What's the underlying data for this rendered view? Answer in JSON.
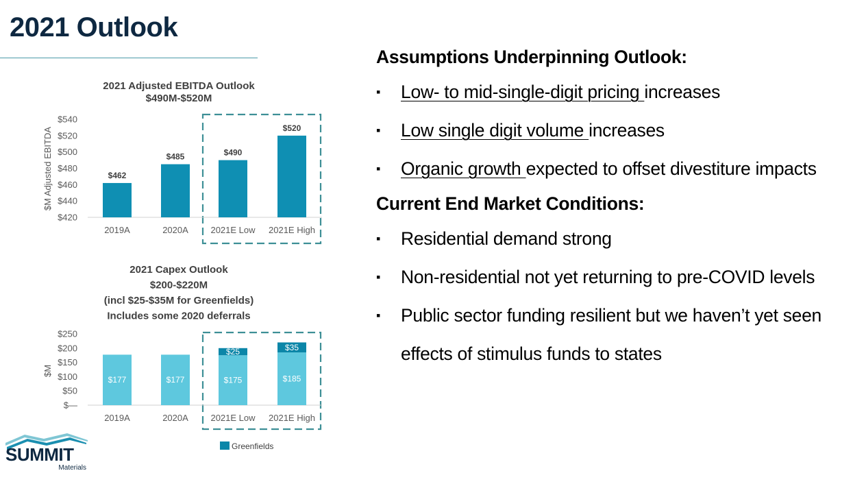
{
  "page": {
    "title": "2021 Outlook"
  },
  "ebitda_chart": {
    "title_lines": [
      "2021 Adjusted EBITDA Outlook",
      "$490M-$520M"
    ],
    "ylabel": "$M Adjusted EBITDA"
  },
  "capex_chart": {
    "title_lines": [
      "2021 Capex Outlook",
      "$200-$220M",
      "(incl $25-$35M for Greenfields)",
      "Includes some 2020 deferrals"
    ],
    "ylabel": "$M",
    "legend_label": "Greenfields"
  },
  "assumptions": {
    "heading": "Assumptions Underpinning Outlook:",
    "items": [
      {
        "underlined": "Low- to mid-single-digit pricing ",
        "rest": "increases"
      },
      {
        "underlined": "Low single digit volume ",
        "rest": "increases"
      },
      {
        "underlined": "Organic growth ",
        "rest": "expected to offset divestiture impacts"
      }
    ]
  },
  "conditions": {
    "heading": "Current End Market Conditions:",
    "items": [
      "Residential demand strong",
      "Non-residential not yet returning to pre-COVID levels",
      "Public sector funding resilient but we haven’t yet seen effects of stimulus funds to states"
    ],
    "bullet_symbol": "▪"
  },
  "logo": {
    "name": "SUMMIT",
    "sub": "Materials"
  },
  "colors": {
    "ebitda_bar": "#0f8fb3",
    "capex_base": "#5ec8de",
    "greenfields": "#0b86a8",
    "dashed_box": "#3d8f96",
    "title": "#0e2841"
  },
  "chart_data": [
    {
      "type": "bar",
      "title": "2021 Adjusted EBITDA Outlook $490M-$520M",
      "categories": [
        "2019A",
        "2020A",
        "2021E Low",
        "2021E High"
      ],
      "values": [
        462,
        485,
        490,
        520
      ],
      "value_labels": [
        "$462",
        "$485",
        "$490",
        "$520"
      ],
      "ylabel": "$M Adjusted EBITDA",
      "ylim": [
        420,
        540
      ],
      "yticks": [
        420,
        440,
        460,
        480,
        500,
        520,
        540
      ],
      "ytick_labels": [
        "$420",
        "$440",
        "$460",
        "$480",
        "$500",
        "$520",
        "$540"
      ],
      "grid": false,
      "highlight_categories": [
        "2021E Low",
        "2021E High"
      ]
    },
    {
      "type": "bar",
      "stacked": true,
      "title": "2021 Capex Outlook $200-$220M (incl $25-$35M for Greenfields) Includes some 2020 deferrals",
      "categories": [
        "2019A",
        "2020A",
        "2021E Low",
        "2021E High"
      ],
      "series": [
        {
          "values": [
            177,
            177,
            175,
            185
          ],
          "labels": [
            "$177",
            "$177",
            "$175",
            "$185"
          ]
        },
        {
          "name": "Greenfields",
          "values": [
            0,
            0,
            25,
            35
          ],
          "labels": [
            "",
            "",
            "$25",
            "$35"
          ]
        }
      ],
      "ylabel": "$M",
      "ylim": [
        0,
        250
      ],
      "yticks": [
        0,
        50,
        100,
        150,
        200,
        250
      ],
      "ytick_labels": [
        "$—",
        "$50",
        "$100",
        "$150",
        "$200",
        "$250"
      ],
      "legend": "bottom",
      "grid": false,
      "highlight_categories": [
        "2021E Low",
        "2021E High"
      ]
    }
  ]
}
